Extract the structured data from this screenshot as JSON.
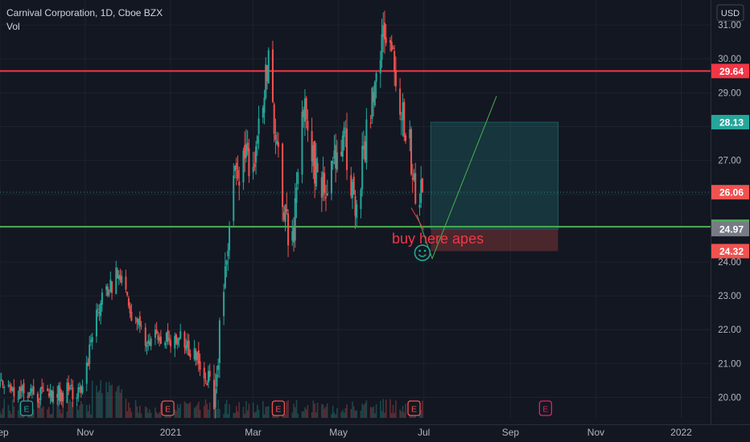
{
  "header": {
    "title": "Carnival Corporation, 1D, Cboe BZX",
    "indicator": "Vol"
  },
  "currency_badge": "USD",
  "annotation_text": "buy here apes",
  "annotation_icon": "smiley-face-icon",
  "colors": {
    "background": "#131722",
    "up": "#26a69a",
    "down": "#ef5350",
    "resistance": "#f23645",
    "support": "#4caf50",
    "profit_zone": "#26a69a",
    "loss_zone": "#ef5350",
    "annotation": "#f23645",
    "earnings": "#ef5350"
  },
  "chart_data": {
    "type": "candlestick",
    "symbol": "Carnival Corporation",
    "interval": "1D",
    "exchange": "Cboe BZX",
    "ylim": [
      19.6,
      31.6
    ],
    "y_ticks": [
      20.0,
      21.0,
      22.0,
      23.0,
      24.0,
      26.0,
      27.0,
      29.0,
      30.0,
      31.0
    ],
    "x_range": [
      "2020-09-01",
      "2022-01-22"
    ],
    "x_ticks": [
      {
        "label": "Sep",
        "date": "2020-09-01"
      },
      {
        "label": "Nov",
        "date": "2020-11-01"
      },
      {
        "label": "2021",
        "date": "2021-01-01"
      },
      {
        "label": "Mar",
        "date": "2021-03-01"
      },
      {
        "label": "May",
        "date": "2021-05-01"
      },
      {
        "label": "Jul",
        "date": "2021-07-01"
      },
      {
        "label": "Sep",
        "date": "2021-09-01"
      },
      {
        "label": "Nov",
        "date": "2021-11-01"
      },
      {
        "label": "2022",
        "date": "2022-01-01"
      }
    ],
    "price_labels": [
      {
        "value": 29.64,
        "label": "29.64",
        "role": "resistance"
      },
      {
        "value": 28.13,
        "label": "28.13",
        "role": "target"
      },
      {
        "value": 26.06,
        "label": "26.06",
        "role": "last"
      },
      {
        "value": 25.04,
        "label": "25.04",
        "role": "support"
      },
      {
        "value": 24.97,
        "label": "24.97",
        "role": "entry"
      },
      {
        "value": 24.32,
        "label": "24.32",
        "role": "stop"
      }
    ],
    "horizontal_lines": [
      {
        "value": 29.64,
        "color": "#f23645"
      },
      {
        "value": 25.04,
        "color": "#4caf50"
      }
    ],
    "position": {
      "entry": 24.97,
      "target": 28.13,
      "stop": 24.32,
      "start": "2021-07-06",
      "end": "2021-10-05"
    },
    "projection_line": [
      {
        "date": "2021-06-26",
        "value": 25.4
      },
      {
        "date": "2021-07-07",
        "value": 24.1
      },
      {
        "date": "2021-08-22",
        "value": 28.9
      }
    ],
    "arrow": [
      {
        "date": "2021-06-22",
        "value": 25.6
      },
      {
        "date": "2021-07-01",
        "value": 24.95
      }
    ],
    "smiley": {
      "date": "2021-06-30",
      "value": 24.27
    },
    "earnings": [
      {
        "date": "2020-09-20",
        "color": "#26a69a"
      },
      {
        "date": "2020-12-30",
        "color": "#ef5350"
      },
      {
        "date": "2021-03-19",
        "color": "#ef5350"
      },
      {
        "date": "2021-06-24",
        "color": "#ef5350"
      },
      {
        "date": "2021-09-26",
        "color": "#e91e63"
      }
    ],
    "key_points": [
      {
        "date": "2020-09-01",
        "value": 20.3
      },
      {
        "date": "2020-10-01",
        "value": 20.1
      },
      {
        "date": "2020-10-30",
        "value": 20.2
      },
      {
        "date": "2020-11-09",
        "value": 22.6
      },
      {
        "date": "2020-11-25",
        "value": 23.7
      },
      {
        "date": "2020-12-04",
        "value": 22.5
      },
      {
        "date": "2020-12-14",
        "value": 21.8
      },
      {
        "date": "2021-01-08",
        "value": 21.7
      },
      {
        "date": "2021-01-22",
        "value": 21.0
      },
      {
        "date": "2021-02-01",
        "value": 20.2
      },
      {
        "date": "2021-02-16",
        "value": 26.5
      },
      {
        "date": "2021-03-02",
        "value": 27.3
      },
      {
        "date": "2021-03-12",
        "value": 29.9
      },
      {
        "date": "2021-03-23",
        "value": 25.5
      },
      {
        "date": "2021-03-29",
        "value": 24.5
      },
      {
        "date": "2021-04-06",
        "value": 28.7
      },
      {
        "date": "2021-04-12",
        "value": 27.0
      },
      {
        "date": "2021-04-23",
        "value": 26.0
      },
      {
        "date": "2021-05-05",
        "value": 27.8
      },
      {
        "date": "2021-05-13",
        "value": 25.5
      },
      {
        "date": "2021-05-26",
        "value": 29.2
      },
      {
        "date": "2021-06-03",
        "value": 30.8
      },
      {
        "date": "2021-06-08",
        "value": 30.2
      },
      {
        "date": "2021-06-13",
        "value": 28.9
      },
      {
        "date": "2021-06-21",
        "value": 27.5
      },
      {
        "date": "2021-06-25",
        "value": 25.9
      },
      {
        "date": "2021-06-30",
        "value": 26.06
      }
    ]
  }
}
